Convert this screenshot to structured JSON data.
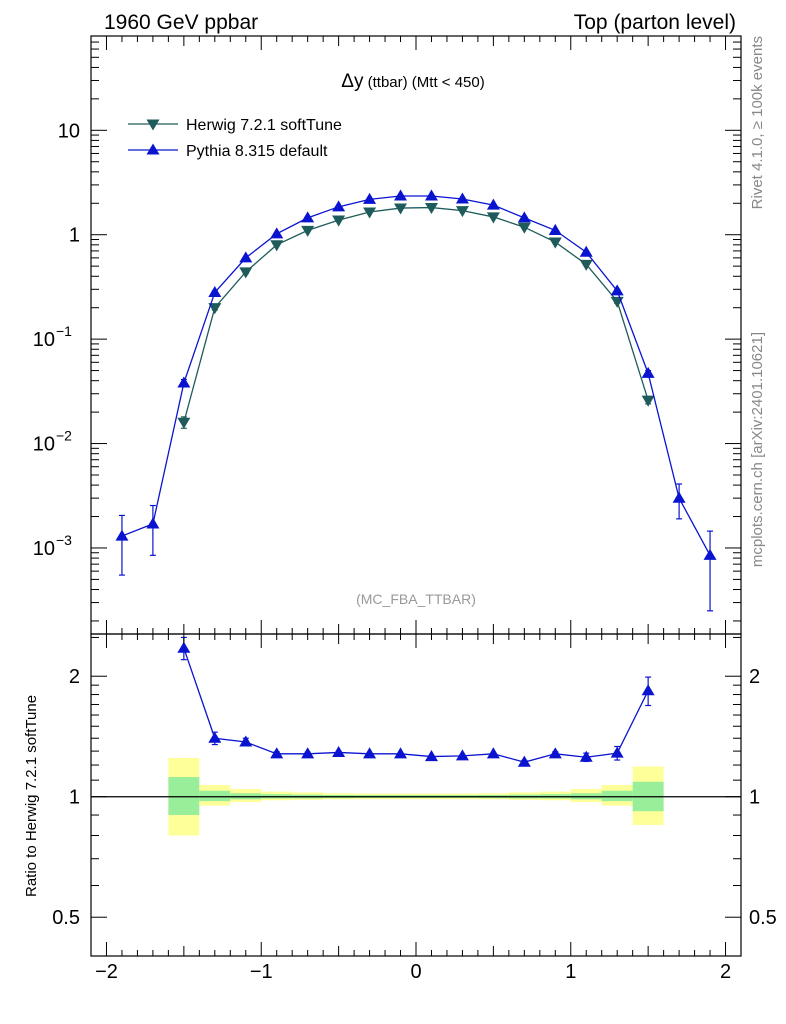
{
  "header": {
    "left": "1960 GeV ppbar",
    "right": "Top (parton level)"
  },
  "side_text": {
    "rivet": "Rivet 4.1.0, ≥ 100k events",
    "site": "mcplots.cern.ch [arXiv:2401.10621]"
  },
  "colors": {
    "herwig": "#1f5b5b",
    "pythia": "#0a14d0",
    "band_inner": "#99ee99",
    "band_outer": "#ffff99"
  },
  "chart_data": [
    {
      "type": "line",
      "title": "Δy",
      "title_small": " (ttbar) (Mtt < 450)",
      "watermark": "(MC_FBA_TTBAR)",
      "xlabel": "",
      "ylabel": "",
      "yscale": "log",
      "xlim": [
        -2.1,
        2.1
      ],
      "ylim": [
        0.00015,
        80
      ],
      "legend_position": "top-left",
      "y_tick_labels": [
        {
          "value": 10,
          "base": "10",
          "exp": ""
        },
        {
          "value": 1,
          "base": "1",
          "exp": ""
        },
        {
          "value": 0.1,
          "base": "10",
          "exp": "−1"
        },
        {
          "value": 0.01,
          "base": "10",
          "exp": "−2"
        },
        {
          "value": 0.001,
          "base": "10",
          "exp": "−3"
        }
      ],
      "x": [
        -1.9,
        -1.7,
        -1.5,
        -1.3,
        -1.1,
        -0.9,
        -0.7,
        -0.5,
        -0.3,
        -0.1,
        0.1,
        0.3,
        0.5,
        0.7,
        0.9,
        1.1,
        1.3,
        1.5,
        1.7,
        1.9
      ],
      "series": [
        {
          "name": "Herwig 7.2.1 softTune",
          "marker": "triangle-down",
          "x": [
            -1.5,
            -1.3,
            -1.1,
            -0.9,
            -0.7,
            -0.5,
            -0.3,
            -0.1,
            0.1,
            0.3,
            0.5,
            0.7,
            0.9,
            1.1,
            1.3,
            1.5
          ],
          "values": [
            0.016,
            0.2,
            0.44,
            0.8,
            1.1,
            1.38,
            1.65,
            1.8,
            1.82,
            1.7,
            1.48,
            1.18,
            0.85,
            0.52,
            0.23,
            0.026
          ],
          "err": [
            0.002,
            0.01,
            0.015,
            0.02,
            0.02,
            0.02,
            0.02,
            0.02,
            0.02,
            0.02,
            0.02,
            0.02,
            0.02,
            0.015,
            0.01,
            0.002
          ]
        },
        {
          "name": "Pythia 8.315 default",
          "marker": "triangle-up",
          "x": [
            -1.9,
            -1.7,
            -1.5,
            -1.3,
            -1.1,
            -0.9,
            -0.7,
            -0.5,
            -0.3,
            -0.1,
            0.1,
            0.3,
            0.5,
            0.7,
            0.9,
            1.1,
            1.3,
            1.5,
            1.7,
            1.9
          ],
          "values": [
            0.0013,
            0.0017,
            0.038,
            0.28,
            0.6,
            1.02,
            1.45,
            1.85,
            2.18,
            2.35,
            2.35,
            2.2,
            1.92,
            1.45,
            1.1,
            0.68,
            0.29,
            0.047,
            0.003,
            0.00085
          ],
          "err": [
            0.00075,
            0.00085,
            0.003,
            0.01,
            0.015,
            0.02,
            0.02,
            0.02,
            0.02,
            0.02,
            0.02,
            0.02,
            0.02,
            0.02,
            0.02,
            0.015,
            0.01,
            0.003,
            0.0011,
            0.0006
          ]
        }
      ]
    },
    {
      "type": "line",
      "title": "",
      "xlabel": "",
      "ylabel": "Ratio to Herwig 7.2.1 softTune",
      "yscale": "log",
      "xlim": [
        -2.1,
        2.1
      ],
      "ylim": [
        0.4,
        2.55
      ],
      "x_tick_labels": [
        {
          "value": -2,
          "label": "−2"
        },
        {
          "value": -1,
          "label": "−1"
        },
        {
          "value": 0,
          "label": "0"
        },
        {
          "value": 1,
          "label": "1"
        },
        {
          "value": 2,
          "label": "2"
        }
      ],
      "y_tick_labels": [
        {
          "value": 2,
          "label": "2"
        },
        {
          "value": 1,
          "label": "1"
        },
        {
          "value": 0.5,
          "label": "0.5"
        }
      ],
      "reference_line": 1,
      "bands": {
        "x_edges": [
          -1.6,
          -1.4,
          -1.2,
          -1.0,
          -0.8,
          -0.6,
          -0.4,
          -0.2,
          0.0,
          0.2,
          0.4,
          0.6,
          0.8,
          1.0,
          1.2,
          1.4,
          1.6
        ],
        "inner_lo": [
          0.9,
          0.975,
          0.985,
          0.99,
          0.99,
          0.992,
          0.993,
          0.993,
          0.993,
          0.993,
          0.992,
          0.99,
          0.99,
          0.985,
          0.975,
          0.92
        ],
        "inner_hi": [
          1.12,
          1.035,
          1.02,
          1.015,
          1.012,
          1.01,
          1.009,
          1.009,
          1.009,
          1.009,
          1.01,
          1.012,
          1.015,
          1.02,
          1.035,
          1.09
        ],
        "outer_lo": [
          0.8,
          0.95,
          0.97,
          0.98,
          0.982,
          0.985,
          0.986,
          0.986,
          0.986,
          0.986,
          0.985,
          0.982,
          0.98,
          0.97,
          0.95,
          0.85
        ],
        "outer_hi": [
          1.25,
          1.07,
          1.045,
          1.03,
          1.025,
          1.02,
          1.018,
          1.018,
          1.018,
          1.018,
          1.02,
          1.025,
          1.03,
          1.045,
          1.07,
          1.19
        ]
      },
      "series": [
        {
          "name": "Pythia 8.315 default",
          "marker": "triangle-up",
          "x": [
            -1.5,
            -1.3,
            -1.1,
            -0.9,
            -0.7,
            -0.5,
            -0.3,
            -0.1,
            0.1,
            0.3,
            0.5,
            0.7,
            0.9,
            1.1,
            1.3,
            1.5
          ],
          "values": [
            2.35,
            1.4,
            1.37,
            1.28,
            1.28,
            1.29,
            1.28,
            1.28,
            1.26,
            1.265,
            1.28,
            1.22,
            1.28,
            1.255,
            1.285,
            1.84
          ],
          "err": [
            0.15,
            0.05,
            0.03,
            0.015,
            0.012,
            0.01,
            0.01,
            0.01,
            0.01,
            0.01,
            0.01,
            0.012,
            0.015,
            0.03,
            0.05,
            0.15
          ]
        }
      ]
    }
  ]
}
